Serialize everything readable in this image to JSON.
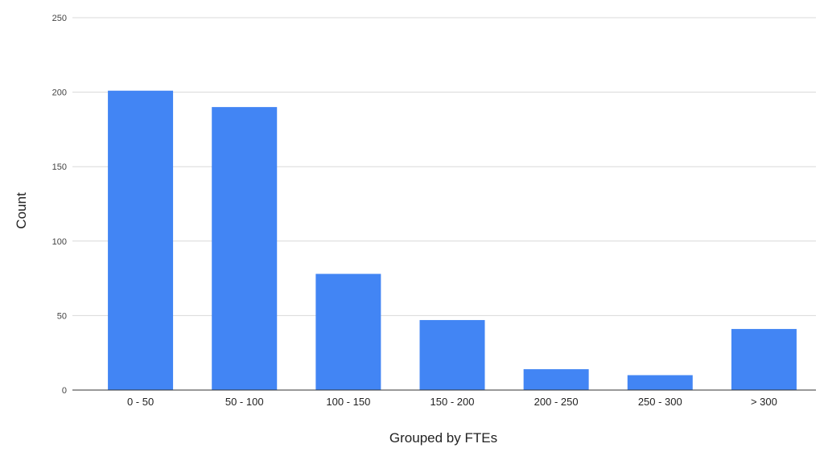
{
  "chart_data": {
    "type": "bar",
    "categories": [
      "0 - 50",
      "50 - 100",
      "100 - 150",
      "150 - 200",
      "200 - 250",
      "250 - 300",
      "> 300"
    ],
    "values": [
      201,
      190,
      78,
      47,
      14,
      10,
      41
    ],
    "title": "",
    "xlabel": "Grouped by FTEs",
    "ylabel": "Count",
    "ylim": [
      0,
      250
    ],
    "yticks": [
      0,
      50,
      100,
      150,
      200,
      250
    ],
    "grid": true,
    "legend": "none",
    "bar_color": "#4285F4"
  }
}
